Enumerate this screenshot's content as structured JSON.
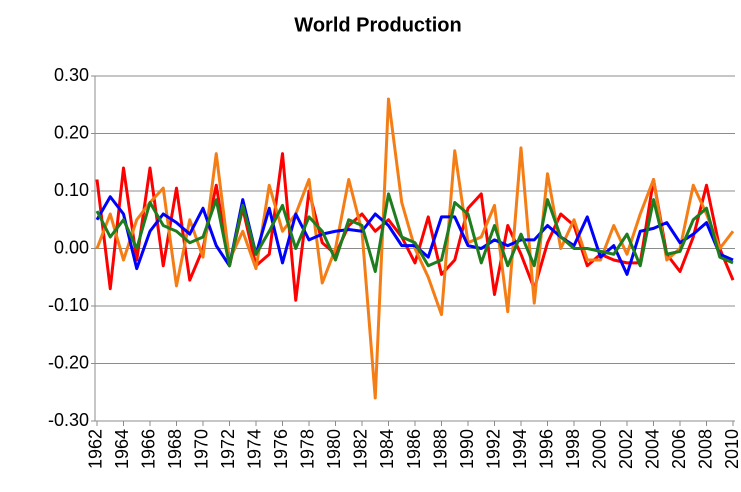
{
  "chart_data": {
    "type": "line",
    "title": "World Production",
    "x": [
      1962,
      1963,
      1964,
      1965,
      1966,
      1967,
      1968,
      1969,
      1970,
      1971,
      1972,
      1973,
      1974,
      1975,
      1976,
      1977,
      1978,
      1979,
      1980,
      1981,
      1982,
      1983,
      1984,
      1985,
      1986,
      1987,
      1988,
      1989,
      1990,
      1991,
      1992,
      1993,
      1994,
      1995,
      1996,
      1997,
      1998,
      1999,
      2000,
      2001,
      2002,
      2003,
      2004,
      2005,
      2006,
      2007,
      2008,
      2009,
      2010
    ],
    "xlim": [
      1961.85,
      2010.15
    ],
    "xticks": [
      1962,
      1964,
      1966,
      1968,
      1970,
      1972,
      1974,
      1976,
      1978,
      1980,
      1982,
      1984,
      1986,
      1988,
      1990,
      1992,
      1994,
      1996,
      1998,
      2000,
      2002,
      2004,
      2006,
      2008,
      2010
    ],
    "ylim": [
      -0.3,
      0.3
    ],
    "yticks": [
      {
        "value": -0.3,
        "label": "-0.30"
      },
      {
        "value": -0.2,
        "label": "-0.20"
      },
      {
        "value": -0.1,
        "label": "-0.10"
      },
      {
        "value": 0,
        "label": "0.00"
      },
      {
        "value": 0.1,
        "label": "0.10"
      },
      {
        "value": 0.2,
        "label": "0.20"
      },
      {
        "value": 0.3,
        "label": "0.30"
      }
    ],
    "grid": true,
    "series": [
      {
        "color": "#ff0000",
        "values": [
          0.12,
          -0.07,
          0.14,
          -0.02,
          0.14,
          -0.03,
          0.105,
          -0.055,
          0.0,
          0.11,
          -0.03,
          0.07,
          -0.03,
          -0.01,
          0.165,
          -0.09,
          0.1,
          0.01,
          -0.01,
          0.04,
          0.06,
          0.03,
          0.05,
          0.02,
          -0.025,
          0.055,
          -0.045,
          -0.02,
          0.07,
          0.095,
          -0.08,
          0.04,
          -0.01,
          -0.07,
          0.01,
          0.06,
          0.04,
          -0.03,
          -0.01,
          -0.02,
          -0.025,
          -0.025,
          0.12,
          -0.01,
          -0.04,
          0.02,
          0.11,
          0.0,
          -0.055
        ]
      },
      {
        "color": "#f57d15",
        "values": [
          0.0,
          0.06,
          -0.02,
          0.05,
          0.08,
          0.105,
          -0.065,
          0.05,
          -0.015,
          0.165,
          -0.02,
          0.03,
          -0.035,
          0.11,
          0.03,
          0.06,
          0.12,
          -0.06,
          0.0,
          0.12,
          0.03,
          -0.26,
          0.26,
          0.08,
          0.0,
          -0.05,
          -0.115,
          0.17,
          0.01,
          0.02,
          0.075,
          -0.11,
          0.175,
          -0.095,
          0.13,
          0.0,
          0.05,
          -0.02,
          -0.02,
          0.04,
          -0.01,
          0.06,
          0.12,
          -0.02,
          0.0,
          0.11,
          0.06,
          0.0,
          0.03
        ]
      },
      {
        "color": "#0000ff",
        "values": [
          0.05,
          0.09,
          0.06,
          -0.035,
          0.03,
          0.06,
          0.045,
          0.025,
          0.07,
          0.005,
          -0.03,
          0.085,
          -0.01,
          0.07,
          -0.025,
          0.06,
          0.015,
          0.025,
          0.03,
          0.033,
          0.03,
          0.06,
          0.04,
          0.005,
          0.005,
          -0.015,
          0.055,
          0.055,
          0.005,
          0.0,
          0.015,
          0.005,
          0.015,
          0.015,
          0.04,
          0.02,
          0.005,
          0.055,
          -0.015,
          0.005,
          -0.045,
          0.03,
          0.035,
          0.045,
          0.01,
          0.025,
          0.045,
          -0.01,
          -0.02
        ]
      },
      {
        "color": "#1e7d1e",
        "values": [
          0.065,
          0.02,
          0.05,
          0.0,
          0.08,
          0.04,
          0.03,
          0.01,
          0.02,
          0.085,
          -0.03,
          0.075,
          -0.01,
          0.03,
          0.075,
          0.0,
          0.055,
          0.03,
          -0.02,
          0.05,
          0.04,
          -0.04,
          0.095,
          0.02,
          0.01,
          -0.03,
          -0.02,
          0.08,
          0.06,
          -0.025,
          0.04,
          -0.03,
          0.025,
          -0.03,
          0.085,
          0.02,
          0.0,
          0.0,
          -0.005,
          -0.01,
          0.025,
          -0.03,
          0.085,
          -0.01,
          -0.005,
          0.05,
          0.07,
          -0.015,
          -0.025
        ]
      }
    ]
  }
}
